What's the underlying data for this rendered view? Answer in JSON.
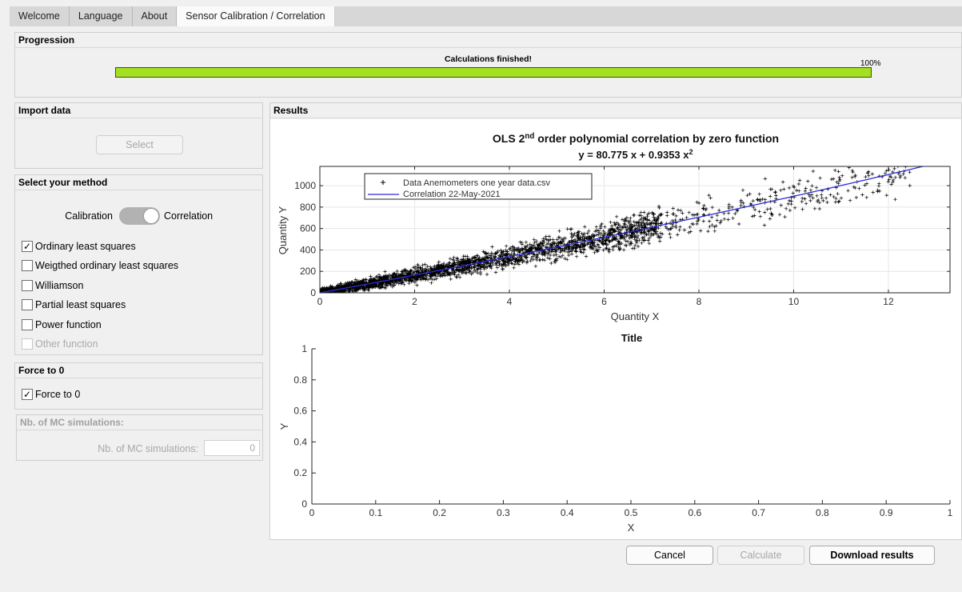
{
  "tabs": [
    {
      "label": "Welcome"
    },
    {
      "label": "Language"
    },
    {
      "label": "About"
    },
    {
      "label": "Sensor Calibration / Correlation"
    }
  ],
  "progression": {
    "title": "Progression",
    "status": "Calculations finished!",
    "percent_label": "100%",
    "percent": 1.0,
    "fill_color": "#a3e01e"
  },
  "import_data": {
    "title": "Import data",
    "select_label": "Select"
  },
  "method": {
    "title": "Select your method",
    "switch_left": "Calibration",
    "switch_right": "Correlation",
    "switch_state": "Correlation",
    "options": [
      {
        "label": "Ordinary least squares",
        "checked": true,
        "enabled": true
      },
      {
        "label": "Weigthed ordinary least squares",
        "checked": false,
        "enabled": true
      },
      {
        "label": "Williamson",
        "checked": false,
        "enabled": true
      },
      {
        "label": "Partial least squares",
        "checked": false,
        "enabled": true
      },
      {
        "label": "Power function",
        "checked": false,
        "enabled": true
      },
      {
        "label": "Other function",
        "checked": false,
        "enabled": false
      }
    ]
  },
  "force": {
    "title": "Force to 0",
    "checkbox_label": "Force to 0",
    "checked": true
  },
  "mc": {
    "title": "Nb. of MC simulations:",
    "field_label": "Nb. of MC simulations:",
    "value": "0"
  },
  "results": {
    "title": "Results"
  },
  "footer": {
    "cancel": "Cancel",
    "calculate": "Calculate",
    "download": "Download results"
  },
  "chart_data": [
    {
      "type": "scatter",
      "title_parts": {
        "prefix": "OLS 2",
        "sup": "nd",
        "suffix": " order polynomial correlation by zero function"
      },
      "subtitle_parts": {
        "prefix": "y = 80.775 x + 0.9353 x",
        "sup": "2"
      },
      "xlabel": "Quantity X",
      "ylabel": "Quantity Y",
      "xlim": [
        0,
        13.3
      ],
      "ylim": [
        0,
        1180
      ],
      "xticks": [
        0,
        2,
        4,
        6,
        8,
        10,
        12
      ],
      "yticks": [
        0,
        200,
        400,
        600,
        800,
        1000
      ],
      "grid": true,
      "legend_position": "top-left",
      "series": [
        {
          "name": "Data Anemometers one year data.csv",
          "marker": "+",
          "color": "#000000",
          "model": {
            "a": 80.775,
            "b": 0.9353,
            "x_max": 12.5
          }
        },
        {
          "name": "Correlation 22-May-2021",
          "kind": "line",
          "color": "#2b2bd9",
          "coefficients": {
            "a": 80.775,
            "b": 0.9353
          }
        }
      ]
    },
    {
      "type": "line",
      "title": "Title",
      "xlabel": "X",
      "ylabel": "Y",
      "xlim": [
        0,
        1
      ],
      "ylim": [
        0,
        1
      ],
      "xticks": [
        "0",
        "0.1",
        "0.2",
        "0.3",
        "0.4",
        "0.5",
        "0.6",
        "0.7",
        "0.8",
        "0.9",
        "1"
      ],
      "yticks": [
        "0",
        "0.2",
        "0.4",
        "0.6",
        "0.8",
        "1"
      ],
      "series": []
    }
  ]
}
